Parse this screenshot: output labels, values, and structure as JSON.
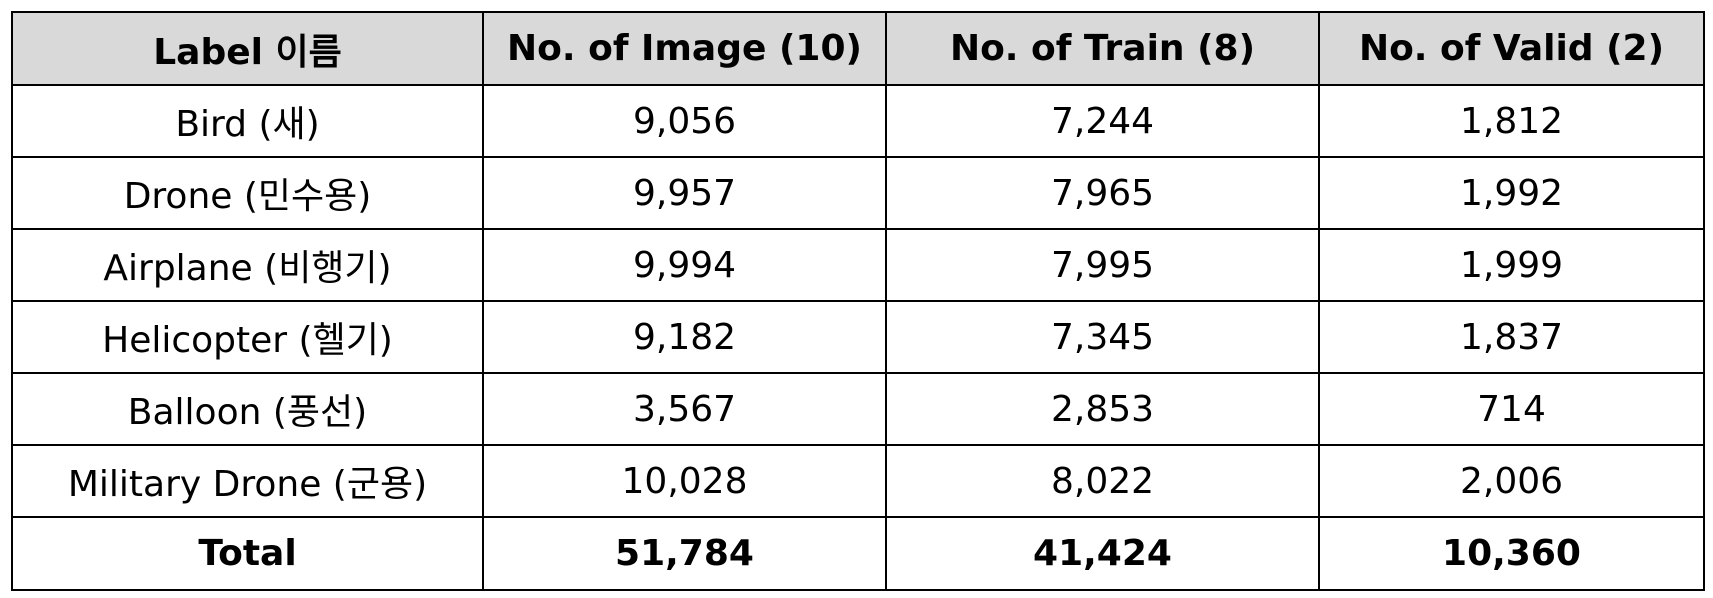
{
  "table": {
    "headers": [
      "Label 이름",
      "No. of Image (10)",
      "No. of Train (8)",
      "No. of Valid (2)"
    ],
    "rows": [
      [
        "Bird (새)",
        "9,056",
        "7,244",
        "1,812"
      ],
      [
        "Drone (민수용)",
        "9,957",
        "7,965",
        "1,992"
      ],
      [
        "Airplane (비행기)",
        "9,994",
        "7,995",
        "1,999"
      ],
      [
        "Helicopter (헬기)",
        "9,182",
        "7,345",
        "1,837"
      ],
      [
        "Balloon (풍선)",
        "3,567",
        "2,853",
        "714"
      ],
      [
        "Military Drone (군용)",
        "10,028",
        "8,022",
        "2,006"
      ]
    ],
    "total": [
      "Total",
      "51,784",
      "41,424",
      "10,360"
    ]
  },
  "colors": {
    "header_background": "#d9d9d9",
    "border": "#000000",
    "text": "#000000"
  }
}
